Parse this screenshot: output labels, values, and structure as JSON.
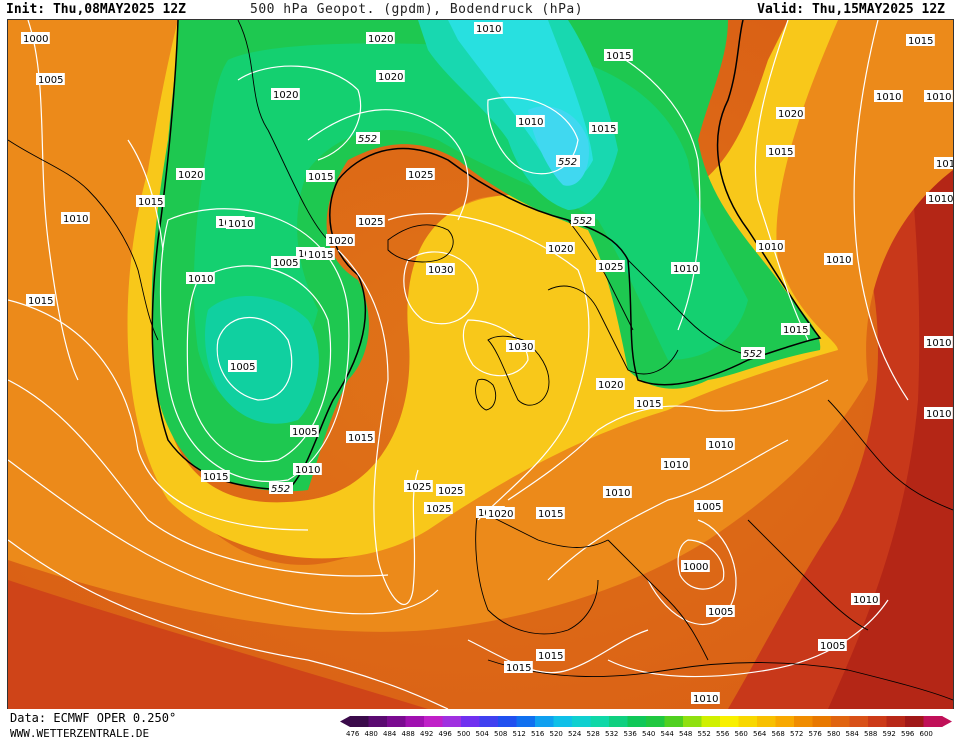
{
  "header": {
    "init": "Init: Thu,08MAY2025 12Z",
    "title": "500 hPa Geopot. (gpdm), Bodendruck (hPa)",
    "valid": "Valid: Thu,15MAY2025 12Z"
  },
  "footer": {
    "data_source": "Data: ECMWF OPER 0.250°",
    "website": "WWW.WETTERZENTRALE.DE"
  },
  "legend": {
    "ticks": [
      "476",
      "480",
      "484",
      "488",
      "492",
      "496",
      "500",
      "504",
      "508",
      "512",
      "516",
      "520",
      "524",
      "528",
      "532",
      "536",
      "540",
      "544",
      "548",
      "552",
      "556",
      "560",
      "564",
      "568",
      "572",
      "576",
      "580",
      "584",
      "588",
      "592",
      "596",
      "600"
    ],
    "colors": [
      "#3a0a4a",
      "#5a0a70",
      "#7a0a90",
      "#a010b0",
      "#c020c8",
      "#a030e0",
      "#7030f0",
      "#4040f0",
      "#2050f0",
      "#1070f0",
      "#10a0f0",
      "#10c0e8",
      "#10d0d0",
      "#10d8a8",
      "#10d080",
      "#10c858",
      "#20c840",
      "#50d020",
      "#90e010",
      "#d0f000",
      "#f8f000",
      "#f8d800",
      "#f8c000",
      "#f8a800",
      "#f08c00",
      "#e87800",
      "#e06410",
      "#d85018",
      "#cc3a18",
      "#b82818",
      "#a01818",
      "#c01058"
    ]
  },
  "colors": {
    "map_background": "#e87a18",
    "isobar_line": "#ffffff",
    "coastline": "#000000",
    "contour_552": "#000000"
  },
  "isobar_labels": [
    {
      "text": "1000"
    },
    {
      "text": "1005"
    },
    {
      "text": "1010"
    },
    {
      "text": "1010"
    },
    {
      "text": "1015"
    },
    {
      "text": "1020"
    },
    {
      "text": "1015"
    },
    {
      "text": "1010"
    },
    {
      "text": "1015"
    },
    {
      "text": "1020"
    },
    {
      "text": "1020"
    },
    {
      "text": "1020"
    },
    {
      "text": "1010"
    },
    {
      "text": "1010"
    },
    {
      "text": "1015"
    },
    {
      "text": "1015"
    },
    {
      "text": "1010"
    },
    {
      "text": "1005"
    },
    {
      "text": "1005"
    },
    {
      "text": "1005"
    },
    {
      "text": "1010"
    },
    {
      "text": "1015"
    },
    {
      "text": "1015"
    },
    {
      "text": "1025"
    },
    {
      "text": "1025"
    },
    {
      "text": "1020"
    },
    {
      "text": "1015"
    },
    {
      "text": "1030"
    },
    {
      "text": "1030"
    },
    {
      "text": "1025"
    },
    {
      "text": "1020"
    },
    {
      "text": "1025"
    },
    {
      "text": "1025"
    },
    {
      "text": "1020"
    },
    {
      "text": "1015"
    },
    {
      "text": "1020"
    },
    {
      "text": "1010"
    },
    {
      "text": "1015"
    },
    {
      "text": "1015"
    },
    {
      "text": "1010"
    },
    {
      "text": "1015"
    },
    {
      "text": "1010"
    },
    {
      "text": "1010"
    },
    {
      "text": "1010"
    },
    {
      "text": "1010"
    },
    {
      "text": "1025"
    },
    {
      "text": "1015"
    },
    {
      "text": "1020"
    },
    {
      "text": "1010"
    },
    {
      "text": "1010"
    },
    {
      "text": "1010"
    },
    {
      "text": "1005"
    },
    {
      "text": "1005"
    },
    {
      "text": "1000"
    },
    {
      "text": "1010"
    },
    {
      "text": "1005"
    },
    {
      "text": "1015"
    },
    {
      "text": "1015"
    },
    {
      "text": "1010"
    },
    {
      "text": "1010"
    },
    {
      "text": "1020"
    },
    {
      "text": "1015"
    },
    {
      "text": "1010"
    },
    {
      "text": "1010"
    },
    {
      "text": "1005"
    }
  ],
  "contour_labels": [
    {
      "text": "552"
    },
    {
      "text": "552"
    },
    {
      "text": "552"
    },
    {
      "text": "552"
    },
    {
      "text": "552"
    }
  ]
}
